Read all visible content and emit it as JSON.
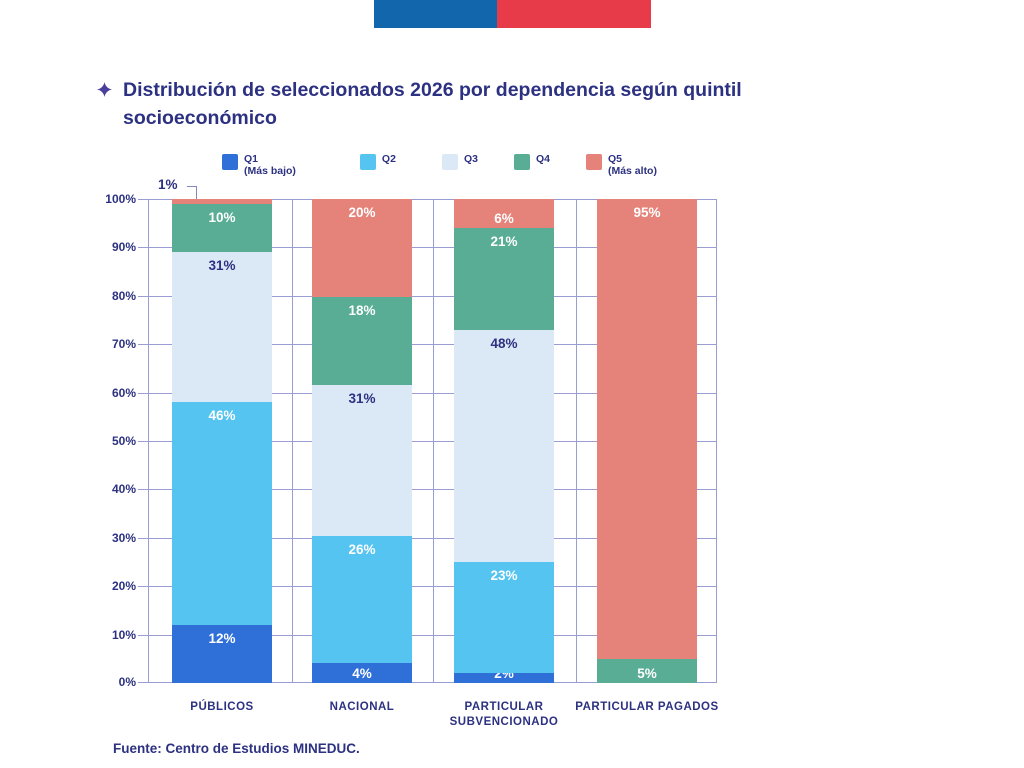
{
  "header": {
    "flag_blue_color": "#1267ac",
    "flag_red_color": "#e73b4a"
  },
  "title": {
    "icon": "sparkle-star",
    "icon_color": "#4b3f9e",
    "text": "Distribución de seleccionados 2026 por dependencia según quintil socioeconómico"
  },
  "legend": {
    "items": [
      {
        "line1": "Q1",
        "line2": "(Más bajo)",
        "color": "#2f6fd8"
      },
      {
        "line1": "Q2",
        "line2": "",
        "color": "#55c4f1"
      },
      {
        "line1": "Q3",
        "line2": "",
        "color": "#dbe8f6"
      },
      {
        "line1": "Q4",
        "line2": "",
        "color": "#58ad94"
      },
      {
        "line1": "Q5",
        "line2": "(Más alto)",
        "color": "#e5837b"
      }
    ]
  },
  "chart_data": {
    "type": "bar",
    "stacked": true,
    "unit": "%",
    "title": "Distribución de seleccionados 2026 por dependencia según quintil socioeconómico",
    "categories": [
      "PÚBLICOS",
      "NACIONAL",
      "PARTICULAR SUBVENCIONADO",
      "PARTICULAR PAGADOS"
    ],
    "series": [
      {
        "name": "Q1 (Más bajo)",
        "color": "#2f6fd8",
        "label_color": "#ffffff",
        "values": [
          12,
          4,
          2,
          0
        ]
      },
      {
        "name": "Q2",
        "color": "#55c4f1",
        "label_color": "#ffffff",
        "values": [
          46,
          26,
          23,
          0
        ]
      },
      {
        "name": "Q3",
        "color": "#dbe8f6",
        "label_color": "#2c3181",
        "values": [
          31,
          31,
          48,
          0
        ]
      },
      {
        "name": "Q4",
        "color": "#58ad94",
        "label_color": "#ffffff",
        "values": [
          10,
          18,
          21,
          5
        ]
      },
      {
        "name": "Q5 (Más alto)",
        "color": "#e5837b",
        "label_color": "#ffffff",
        "values": [
          1,
          20,
          6,
          95
        ]
      }
    ],
    "y_ticks": [
      "0%",
      "10%",
      "20%",
      "30%",
      "40%",
      "50%",
      "60%",
      "70%",
      "80%",
      "90%",
      "100%"
    ],
    "ylim": [
      0,
      100
    ],
    "grid": true,
    "grid_color": "#9a9dd3",
    "legend_position": "top",
    "annotation": {
      "text": "1%",
      "target_category": "PÚBLICOS",
      "target_series": "Q5 (Más alto)"
    }
  },
  "footer": {
    "source": "Fuente: Centro de Estudios MINEDUC."
  }
}
